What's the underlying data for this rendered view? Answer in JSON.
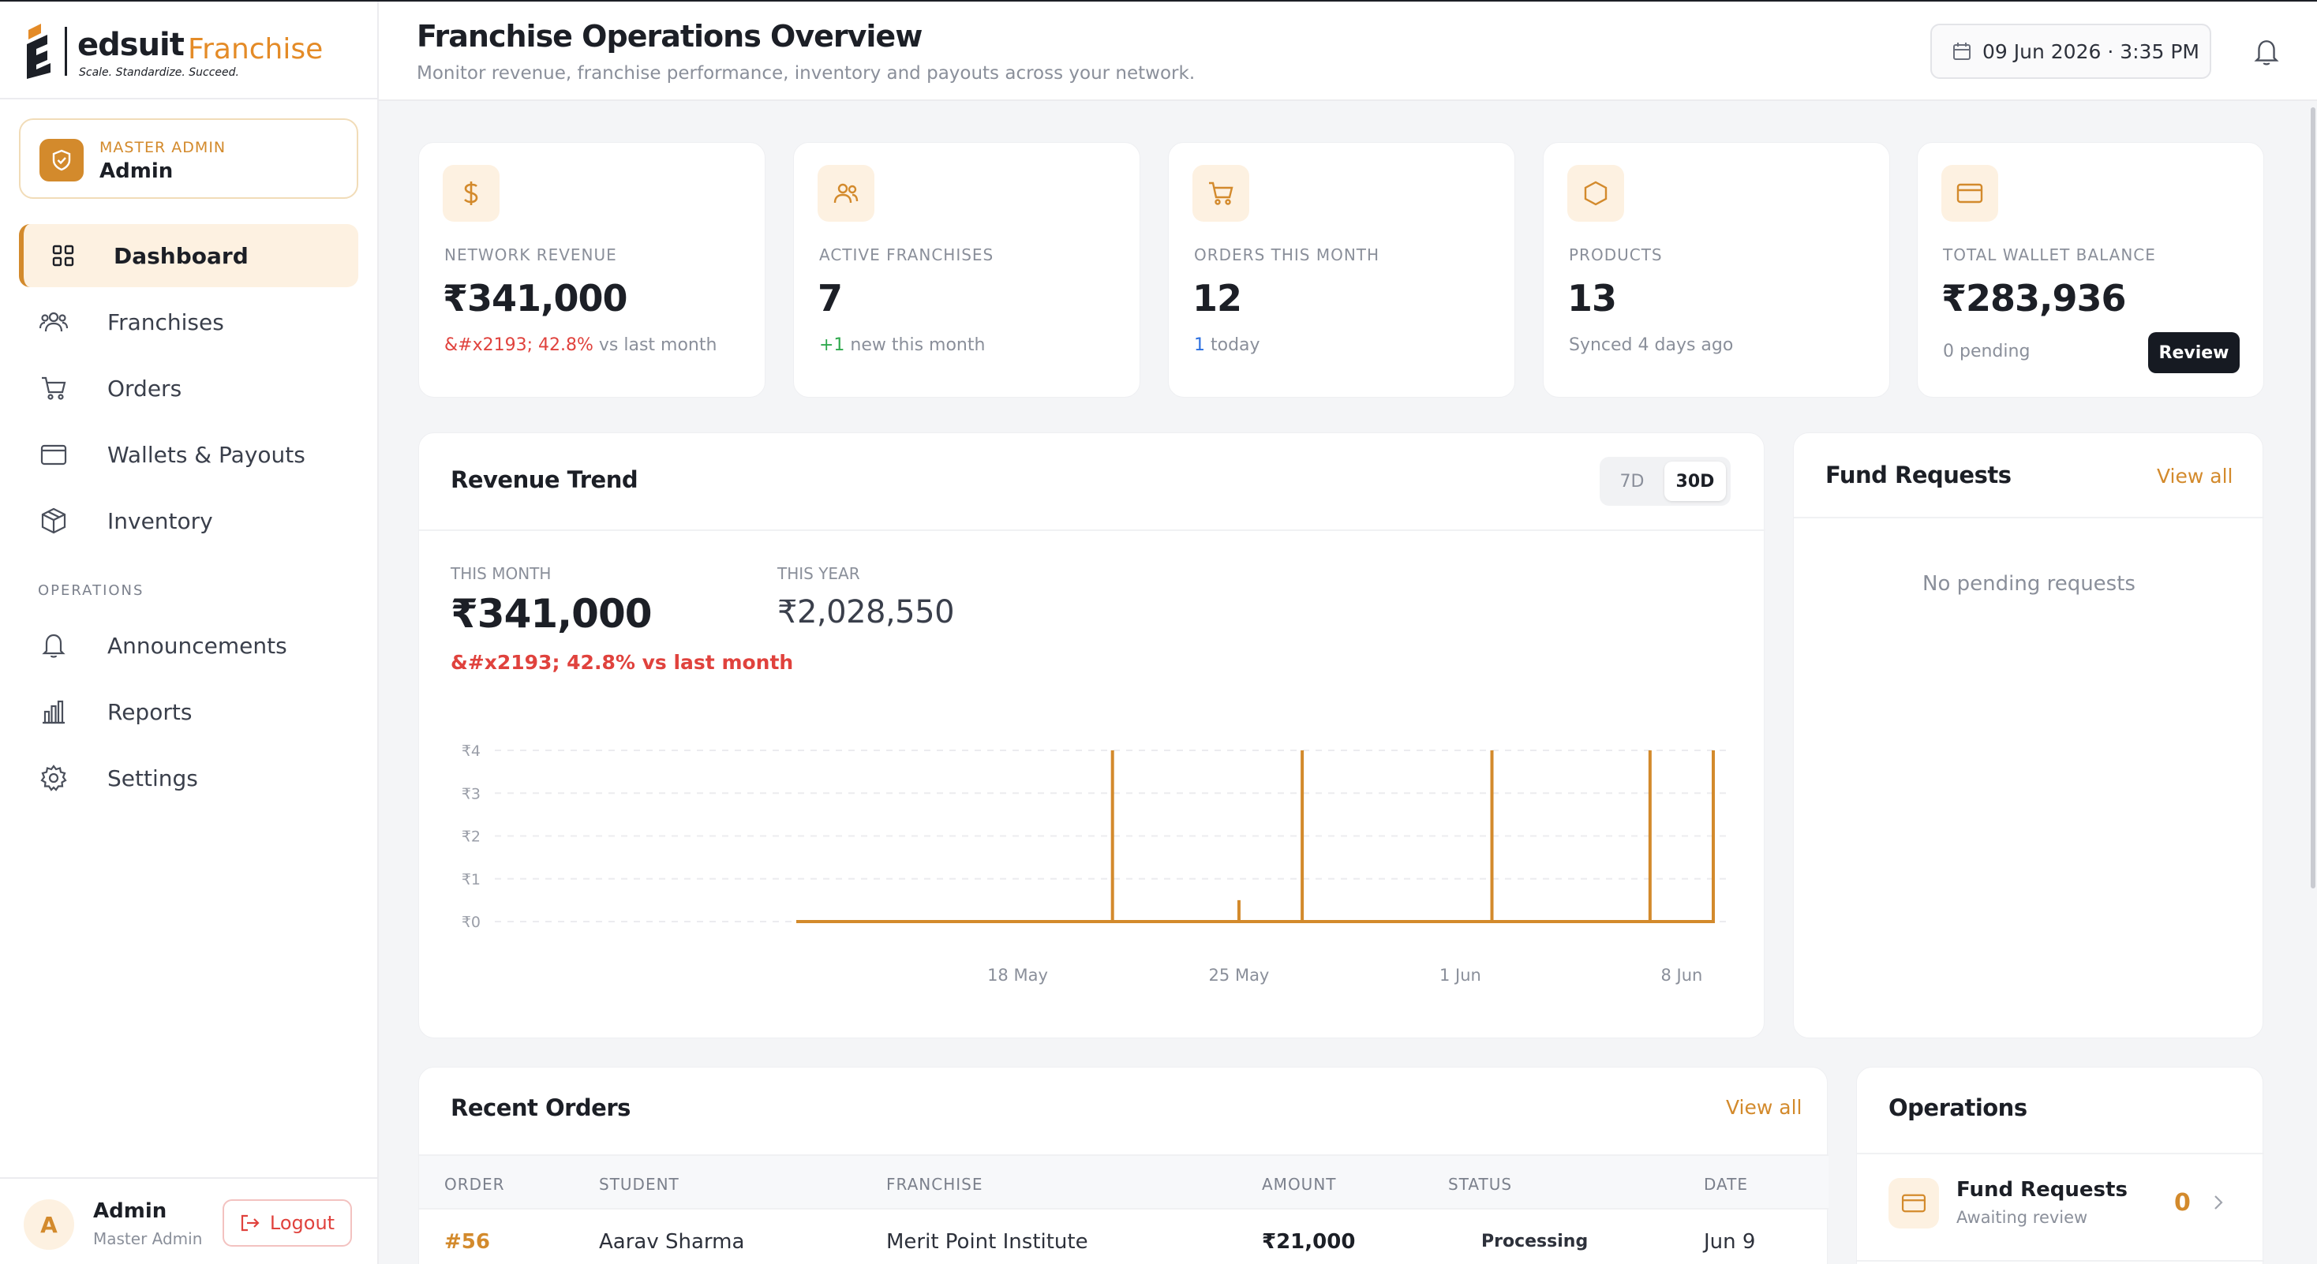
{
  "brand": {
    "name": "edsuit",
    "suffix": "Franchise",
    "tagline": "Scale. Standardize. Succeed."
  },
  "role": {
    "kicker": "MASTER ADMIN",
    "name": "Admin"
  },
  "nav": {
    "items": [
      {
        "label": "Dashboard",
        "icon": "grid-icon",
        "active": true
      },
      {
        "label": "Franchises",
        "icon": "users-icon"
      },
      {
        "label": "Orders",
        "icon": "cart-icon"
      },
      {
        "label": "Wallets & Payouts",
        "icon": "wallet-icon"
      },
      {
        "label": "Inventory",
        "icon": "box-icon"
      }
    ],
    "section": "OPERATIONS",
    "ops_items": [
      {
        "label": "Announcements",
        "icon": "bell-icon"
      },
      {
        "label": "Reports",
        "icon": "bar-chart-icon"
      },
      {
        "label": "Settings",
        "icon": "gear-icon"
      }
    ]
  },
  "user": {
    "initial": "A",
    "name": "Admin",
    "role": "Master Admin",
    "logout": "Logout"
  },
  "header": {
    "title": "Franchise Operations Overview",
    "subtitle": "Monitor revenue, franchise performance, inventory and payouts across your network.",
    "datetime": "09 Jun 2026 · 3:35 PM"
  },
  "stats": [
    {
      "icon": "rupee-icon",
      "label": "NETWORK REVENUE",
      "value": "₹341,000",
      "note_highlight": "&#x2193; 42.8%",
      "note_rest": " vs last month"
    },
    {
      "icon": "users-icon",
      "label": "ACTIVE FRANCHISES",
      "value": "7",
      "note_highlight": "+1",
      "note_rest": " new this month"
    },
    {
      "icon": "cart-icon",
      "label": "ORDERS THIS MONTH",
      "value": "12",
      "note_highlight": "1",
      "note_rest": " today"
    },
    {
      "icon": "hexagon-icon",
      "label": "PRODUCTS",
      "value": "13",
      "note_highlight": "",
      "note_rest": "Synced 4 days ago"
    },
    {
      "icon": "card-icon",
      "label": "TOTAL WALLET BALANCE",
      "value": "₹283,936",
      "note_highlight": "",
      "note_rest": "0 pending",
      "action": "Review"
    }
  ],
  "revenue": {
    "title": "Revenue Trend",
    "ranges": [
      "7D",
      "30D"
    ],
    "active_range": "30D",
    "this_month_label": "THIS MONTH",
    "this_month_value": "₹341,000",
    "this_month_change": "&#x2193; 42.8% vs last month",
    "this_year_label": "THIS YEAR",
    "this_year_value": "₹2,028,550"
  },
  "chart_data": {
    "type": "line",
    "x": [
      "11 May",
      "12 May",
      "13 May",
      "14 May",
      "15 May",
      "16 May",
      "17 May",
      "18 May",
      "19 May",
      "20 May",
      "21 May",
      "22 May",
      "23 May",
      "24 May",
      "25 May",
      "26 May",
      "27 May",
      "28 May",
      "29 May",
      "30 May",
      "31 May",
      "1 Jun",
      "2 Jun",
      "3 Jun",
      "4 Jun",
      "5 Jun",
      "6 Jun",
      "7 Jun",
      "8 Jun",
      "9 Jun"
    ],
    "series": [
      {
        "values": [
          0,
          0,
          0,
          0,
          0,
          0,
          0,
          0,
          0,
          0,
          4,
          0,
          0,
          0,
          0.5,
          0,
          4,
          0,
          0,
          0,
          0,
          0,
          4,
          0,
          0,
          0,
          0,
          4,
          0,
          4
        ]
      }
    ],
    "xticks": [
      "18 May",
      "25 May",
      "1 Jun",
      "8 Jun"
    ],
    "yticks": [
      "₹0",
      "₹1",
      "₹2",
      "₹3",
      "₹4"
    ],
    "ylim": [
      0,
      4
    ],
    "grid": true,
    "color": "#d38a2c"
  },
  "fund_requests": {
    "title": "Fund Requests",
    "view_all": "View all",
    "empty": "No pending requests"
  },
  "orders": {
    "title": "Recent Orders",
    "view_all": "View all",
    "columns": [
      "ORDER",
      "STUDENT",
      "FRANCHISE",
      "AMOUNT",
      "STATUS",
      "DATE"
    ],
    "rows": [
      {
        "order": "#56",
        "student": "Aarav Sharma",
        "franchise": "Merit Point Institute",
        "amount": "₹21,000",
        "status": "Processing",
        "date": "Jun 9"
      }
    ]
  },
  "operations": {
    "title": "Operations",
    "items": [
      {
        "name": "Fund Requests",
        "sub": "Awaiting review",
        "count": "0"
      }
    ]
  },
  "colors": {
    "accent": "#d38a2c",
    "negative": "#e0423d",
    "positive": "#2fa94d",
    "link_blue": "#2b6fe0",
    "dark": "#161a22"
  }
}
